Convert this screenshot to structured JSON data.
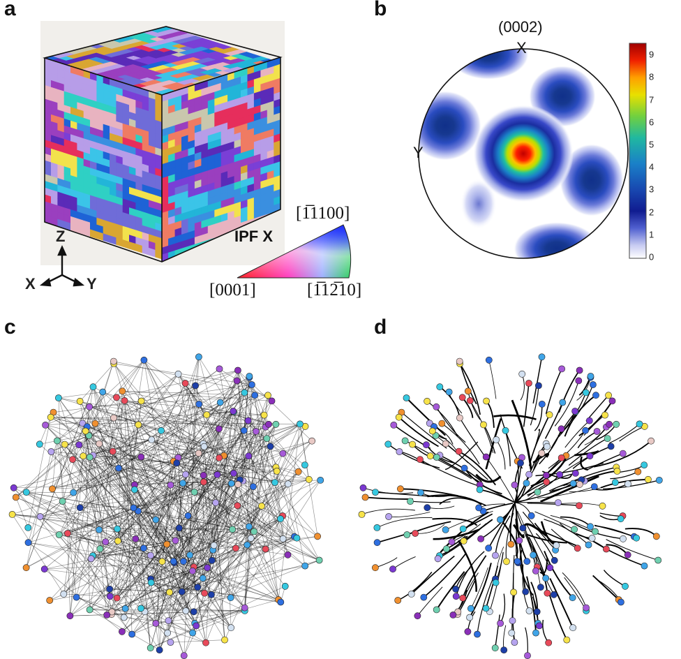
{
  "panels": {
    "a": {
      "label": "a",
      "axes": {
        "z": "Z",
        "x": "X",
        "y": "Y"
      },
      "ipf": {
        "title": "IPF X",
        "corners": {
          "top": "[1̅1100]",
          "left": "[0001]",
          "right": "[1̅12̅10]"
        }
      }
    },
    "b": {
      "label": "b",
      "title": "(0002)",
      "pole_labels": {
        "x": "X",
        "y": "Y"
      },
      "colorbar": {
        "ticks": [
          "9",
          "8",
          "7",
          "6",
          "5",
          "4",
          "3",
          "2",
          "1",
          "0"
        ],
        "min": 0,
        "max": 9.5
      }
    },
    "c": {
      "label": "c"
    },
    "d": {
      "label": "d"
    }
  },
  "chart_data": {
    "type": "heatmap",
    "title": "(0002)",
    "colorbar_range": [
      0,
      9.5
    ],
    "peaks": [
      {
        "name": "center",
        "max": 9.3
      },
      {
        "name": "upper-left",
        "max": 3.5
      },
      {
        "name": "upper-right",
        "max": 3.5
      },
      {
        "name": "top",
        "max": 3.0
      },
      {
        "name": "right",
        "max": 3.5
      },
      {
        "name": "bottom",
        "max": 3.0
      },
      {
        "name": "lower-left",
        "max": 1.5
      }
    ]
  },
  "colors": {
    "grain_palette": [
      "#1e63d6",
      "#3a8fe0",
      "#22b5d8",
      "#7a3fd6",
      "#5a2bb8",
      "#c9c7ad",
      "#ef7b63",
      "#e62e5c",
      "#d9a632",
      "#2fd0c4",
      "#b79de8",
      "#6f6cd8",
      "#e8b3c0",
      "#9a3fbf",
      "#3bc4e8",
      "#f2e24c"
    ],
    "node_palette": [
      "#2e6fe0",
      "#40a5e8",
      "#36c8e0",
      "#7b39d1",
      "#a65ad8",
      "#b6a4ef",
      "#e8c9c5",
      "#f7e34a",
      "#e84a5a",
      "#f09030",
      "#6fd0b0",
      "#1d3fa8",
      "#d2e0f0",
      "#8a2fb8"
    ]
  }
}
